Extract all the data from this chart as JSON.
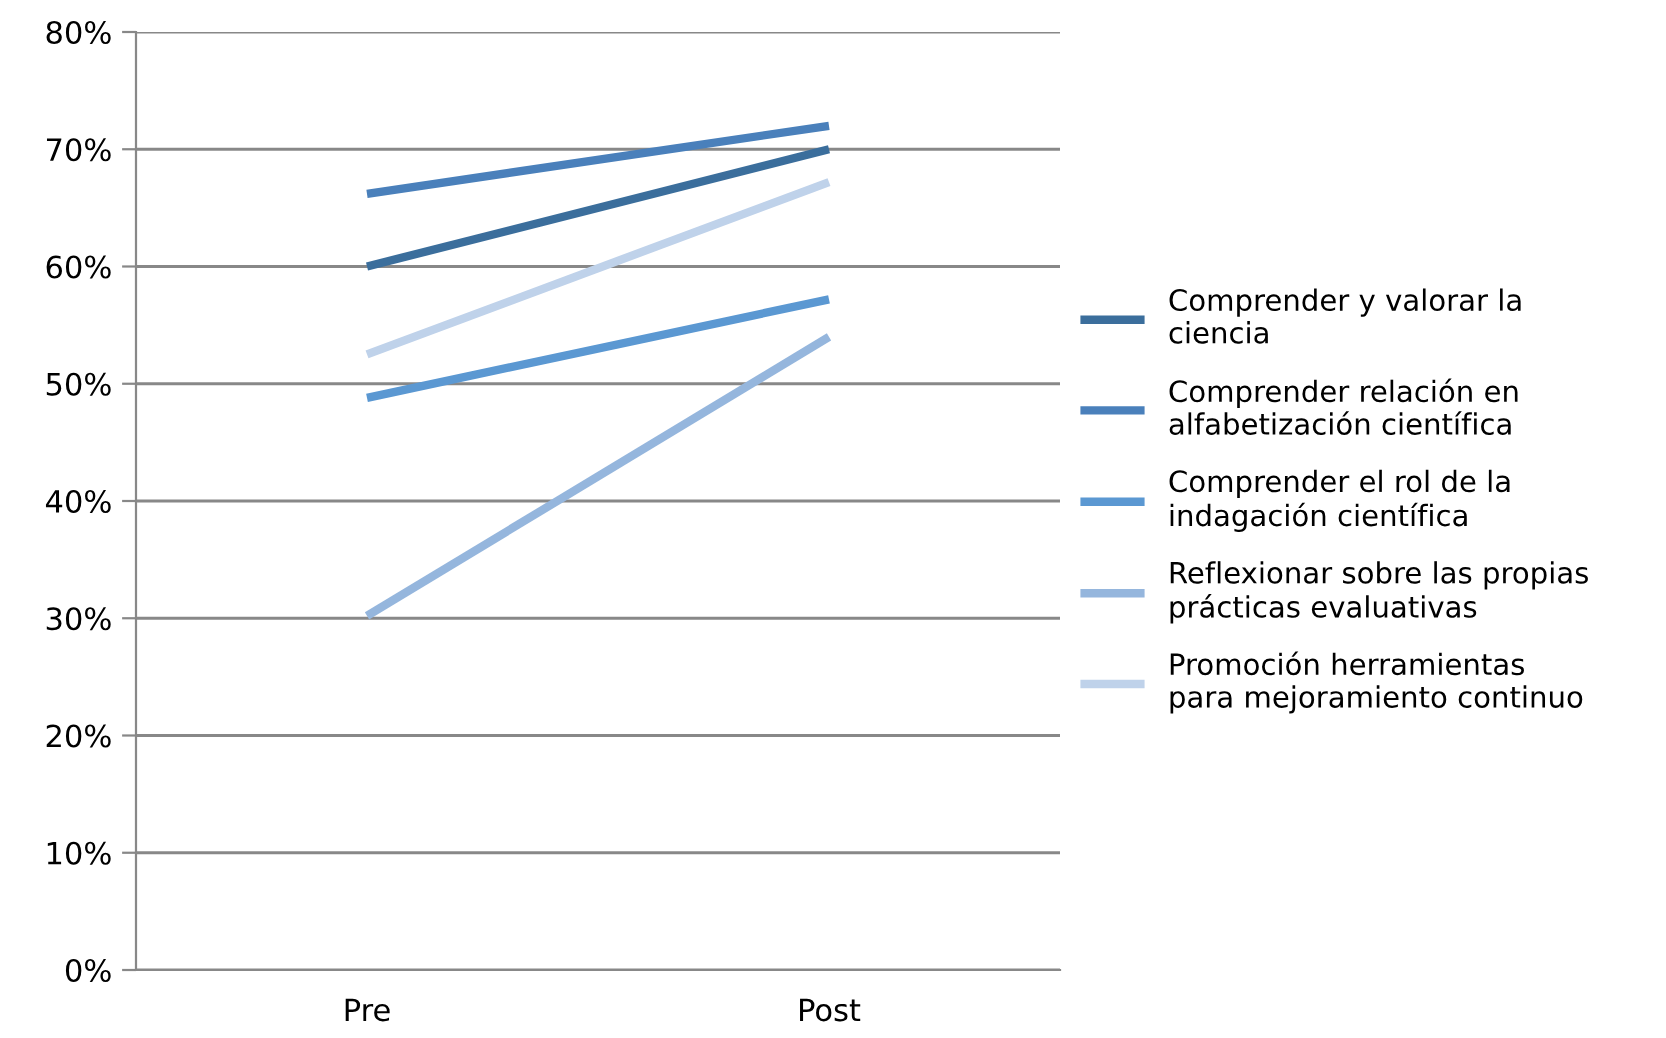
{
  "chart_data": {
    "type": "line",
    "categories": [
      "Pre",
      "Post"
    ],
    "series": [
      {
        "name": "Comprender y valorar la\nciencia",
        "color": "#3b6e9c",
        "values": [
          60,
          70
        ]
      },
      {
        "name": "Comprender relación en\nalfabetización científica",
        "color": "#4a80bb",
        "values": [
          66.2,
          72
        ]
      },
      {
        "name": "Comprender el rol de la\nindagación científica",
        "color": "#5b98d2",
        "values": [
          48.8,
          57.2
        ]
      },
      {
        "name": "Reflexionar sobre las propias\nprácticas evaluativas",
        "color": "#95b6dd",
        "values": [
          30.2,
          54
        ]
      },
      {
        "name": "Promoción herramientas\npara mejoramiento continuo",
        "color": "#bfd2ea",
        "values": [
          52.5,
          67.2
        ]
      }
    ],
    "ylim": [
      0,
      80
    ],
    "yticks": [
      {
        "value": 0,
        "label": "0%"
      },
      {
        "value": 10,
        "label": "10%"
      },
      {
        "value": 20,
        "label": "20%"
      },
      {
        "value": 30,
        "label": "30%"
      },
      {
        "value": 40,
        "label": "40%"
      },
      {
        "value": 50,
        "label": "50%"
      },
      {
        "value": 60,
        "label": "60%"
      },
      {
        "value": 70,
        "label": "70%"
      },
      {
        "value": 80,
        "label": "80%"
      }
    ],
    "grid": "y",
    "legend": "right",
    "marker": "none",
    "line_style": "solid"
  }
}
